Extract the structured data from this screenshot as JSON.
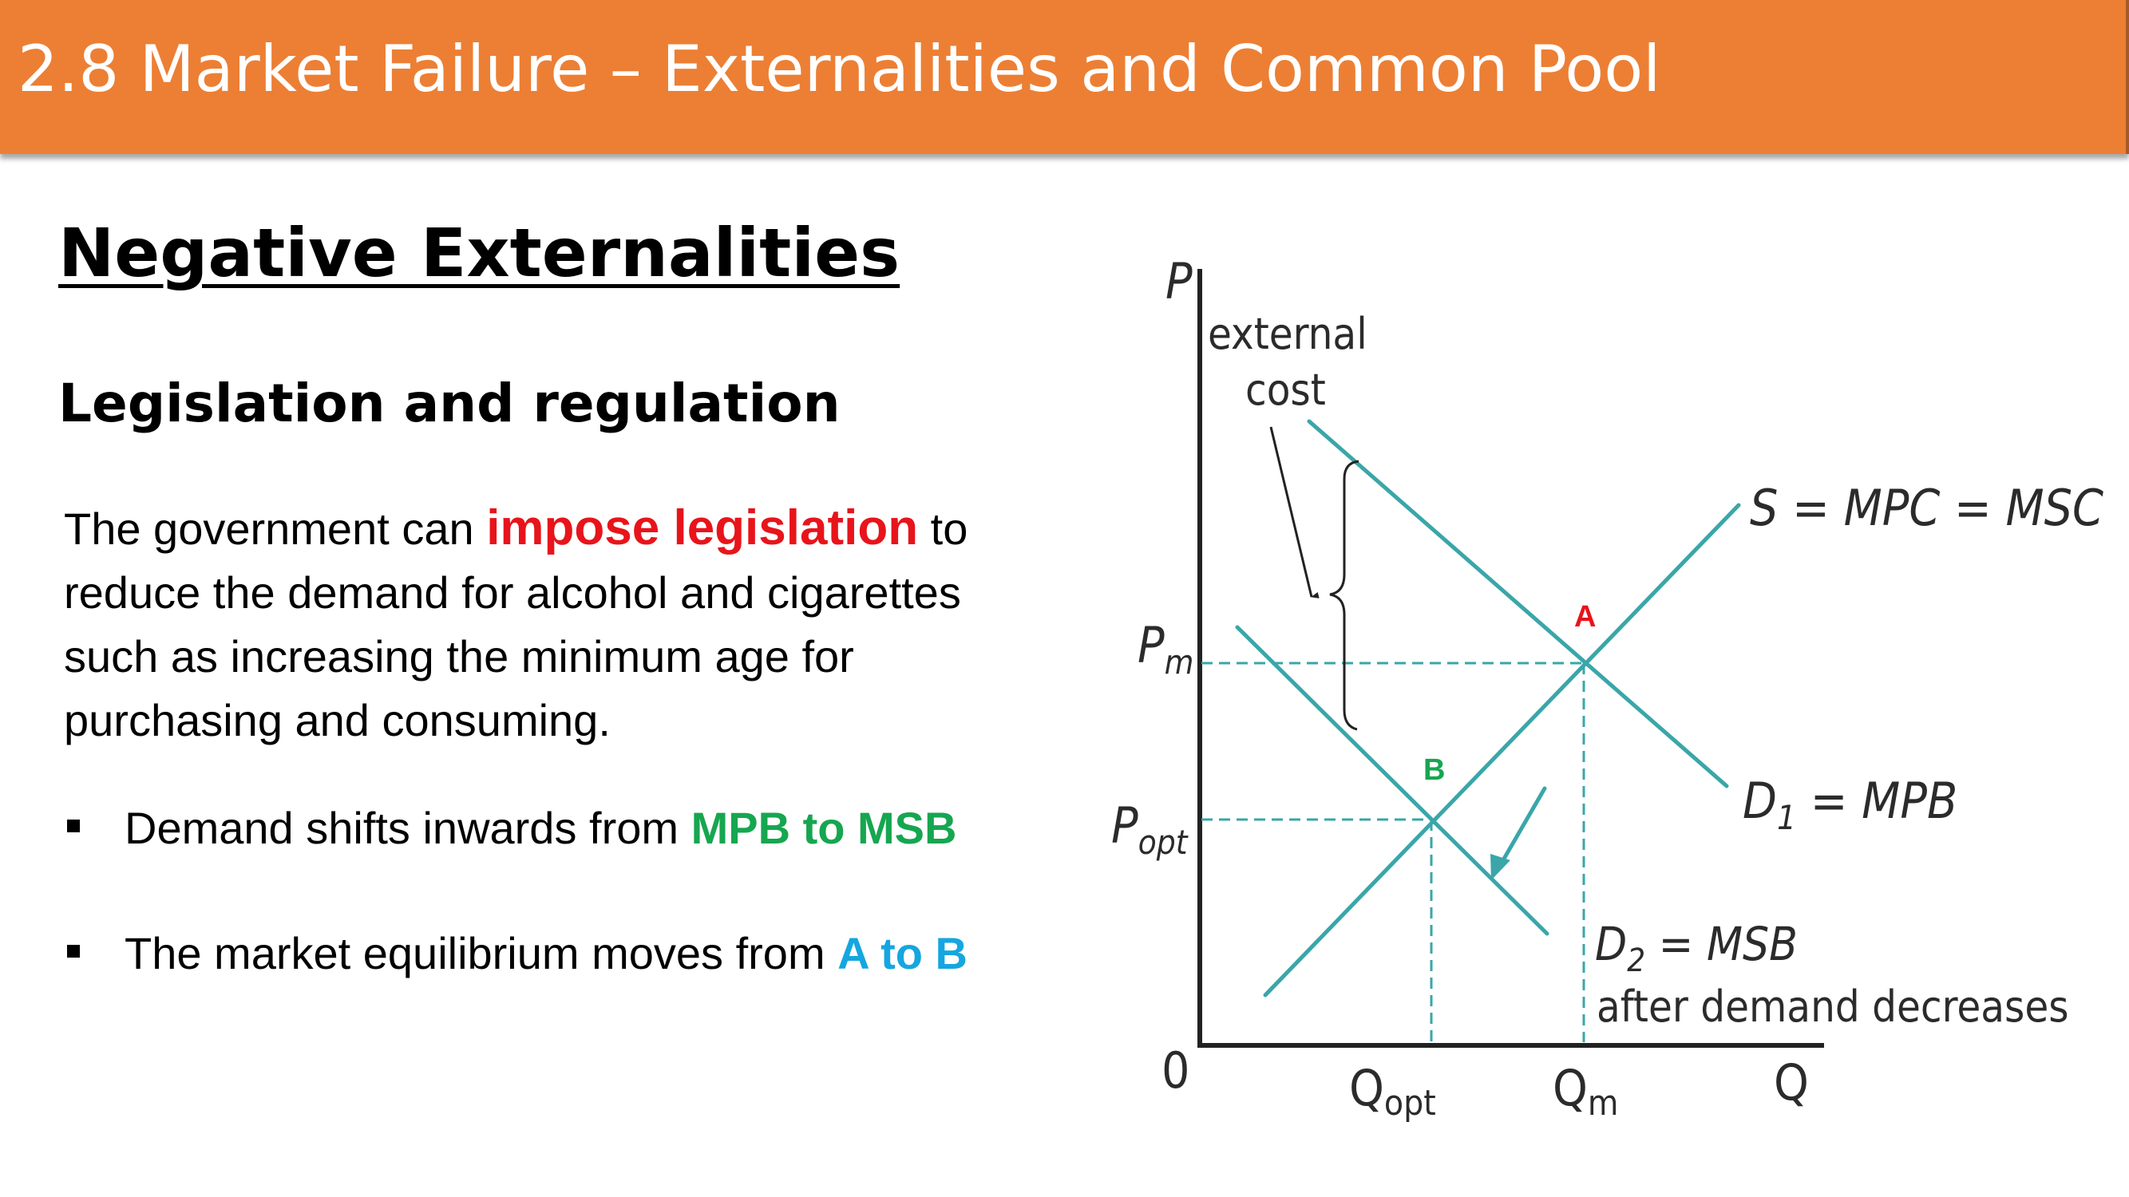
{
  "slide": {
    "title": "2.8 Market Failure – Externalities and Common Pool",
    "heading": "Negative Externalities",
    "subheading": "Legislation and regulation",
    "paragraph": {
      "before": "The government can ",
      "emphasis": "impose legislation",
      "after": " to reduce the demand for alcohol and cigarettes such as increasing the minimum age for purchasing and consuming."
    },
    "bullets": [
      {
        "text": "Demand shifts inwards from ",
        "highlight": "MPB to MSB",
        "highlight_color": "#16a650"
      },
      {
        "text": "The market equilibrium moves from ",
        "highlight": "A to B",
        "highlight_color": "#15a6e0"
      }
    ]
  },
  "diagram": {
    "axis_y": "P",
    "axis_x": "Q",
    "origin": "0",
    "external_cost_label": [
      "external",
      "cost"
    ],
    "supply_label": "S = MPC = MSC",
    "d1_label": {
      "main": "D",
      "sub": "1",
      "rest": " = MPB"
    },
    "d2_label": {
      "main": "D",
      "sub": "2",
      "rest": " = MSB"
    },
    "d2_note": "after demand decreases",
    "pm_label": {
      "main": "P",
      "sub": "m"
    },
    "popt_label": {
      "main": "P",
      "sub": "opt"
    },
    "qopt_label": {
      "main": "Q",
      "sub": "opt"
    },
    "qm_label": {
      "main": "Q",
      "sub": "m"
    },
    "point_a": "A",
    "point_b": "B",
    "colors": {
      "curve": "#3aa6a9",
      "point_a": "#e8141b",
      "point_b": "#16a650"
    }
  }
}
